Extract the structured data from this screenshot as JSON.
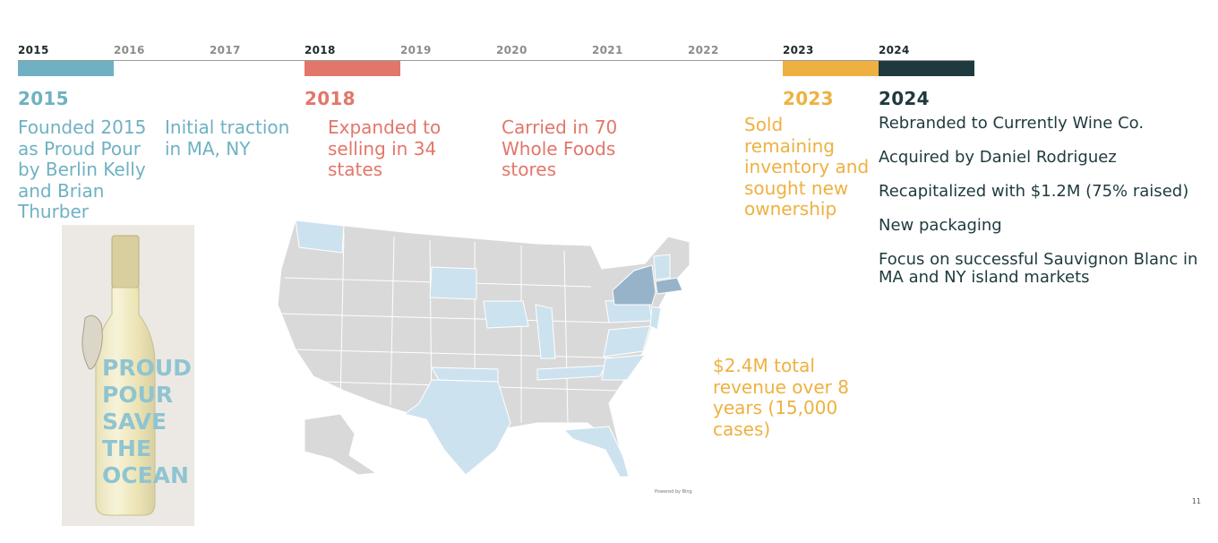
{
  "timeline": {
    "years": [
      "2015",
      "2016",
      "2017",
      "2018",
      "2019",
      "2020",
      "2021",
      "2022",
      "2023",
      "2024"
    ],
    "colors": {
      "y2015": "#6fb1c3",
      "y2018": "#e3766a",
      "y2023": "#eeb141",
      "y2024": "#1f3a3e"
    }
  },
  "section2015": {
    "heading": "2015",
    "founded": "Founded 2015 as Proud Pour by Berlin Kelly and Brian Thurber",
    "traction": "Initial traction in MA, NY"
  },
  "section2018": {
    "heading": "2018",
    "expanded": "Expanded to selling in 34 states",
    "carried": "Carried in 70 Whole Foods stores"
  },
  "section2023": {
    "heading": "2023",
    "text": "Sold remaining inventory and sought new ownership"
  },
  "section2024": {
    "heading": "2024",
    "items": [
      "Rebranded to Currently Wine Co.",
      "Acquired by Daniel Rodriguez",
      "Recapitalized with $1.2M (75% raised)",
      "New packaging",
      "Focus on successful Sauvignon Blanc in MA and NY island markets"
    ]
  },
  "bottle": {
    "label_lines": [
      "PROUD",
      "POUR",
      "SAVE",
      "THE",
      "OCEAN"
    ]
  },
  "map": {
    "credit": "Powered by Bing",
    "highlighted_states": [
      "Washington",
      "South Dakota",
      "Iowa",
      "Illinois",
      "Texas",
      "Oklahoma",
      "Tennessee",
      "North Carolina",
      "Virginia",
      "Florida",
      "Pennsylvania",
      "New Jersey",
      "Maryland",
      "Vermont",
      "Connecticut"
    ],
    "strong_states": [
      "New York",
      "Massachusetts"
    ]
  },
  "stats": {
    "revenue": "$2.4M total revenue over 8 years (15,000 cases)"
  },
  "page": {
    "number": "11"
  }
}
